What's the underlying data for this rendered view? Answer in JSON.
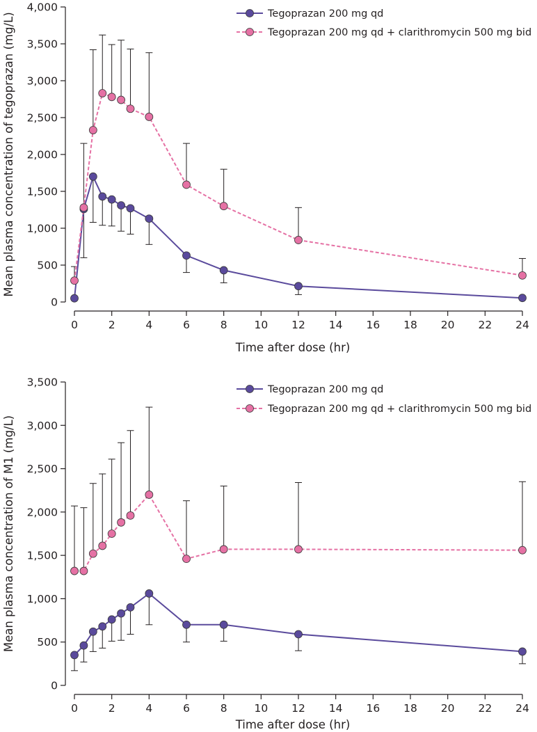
{
  "colors": {
    "series1": "#5a4a9c",
    "series2": "#e571a4",
    "axis": "#231f20"
  },
  "chart_data": [
    {
      "type": "line",
      "xlabel": "Time after dose (hr)",
      "ylabel": "Mean plasma concentration of tegoprazan (mg/L)",
      "xlim": [
        0,
        24
      ],
      "ylim": [
        0,
        4000
      ],
      "xticks": [
        "0",
        "2",
        "4",
        "6",
        "8",
        "10",
        "12",
        "14",
        "16",
        "18",
        "20",
        "22",
        "24"
      ],
      "yticks": [
        "0",
        "500",
        "1,000",
        "1,500",
        "2,000",
        "2,500",
        "3,000",
        "3,500",
        "4,000"
      ],
      "grid": false,
      "legend_position": "top-right",
      "x": [
        0,
        0.5,
        1,
        1.5,
        2,
        2.5,
        3,
        4,
        6,
        8,
        12,
        24
      ],
      "series": [
        {
          "name": "Tegoprazan 200 mg qd",
          "style": "solid",
          "values": [
            50,
            1260,
            1700,
            1430,
            1390,
            1310,
            1270,
            1130,
            630,
            430,
            215,
            55
          ],
          "error_lower": [
            null,
            600,
            1080,
            1040,
            1030,
            960,
            920,
            780,
            400,
            260,
            100,
            null
          ],
          "error_upper": [
            null,
            null,
            null,
            null,
            null,
            null,
            null,
            null,
            null,
            null,
            null,
            null
          ]
        },
        {
          "name": "Tegoprazan 200 mg qd + clarithromycin 500 mg bid",
          "style": "dashed",
          "values": [
            290,
            1280,
            2330,
            2830,
            2780,
            2740,
            2620,
            2510,
            1590,
            1300,
            840,
            360
          ],
          "error_lower": [
            null,
            null,
            null,
            null,
            null,
            null,
            null,
            null,
            null,
            null,
            null,
            null
          ],
          "error_upper": [
            480,
            2150,
            3420,
            3620,
            3490,
            3550,
            3430,
            3380,
            2150,
            1800,
            1280,
            590
          ]
        }
      ]
    },
    {
      "type": "line",
      "xlabel": "Time after dose (hr)",
      "ylabel": "Mean plasma concentration of M1 (mg/L)",
      "xlim": [
        0,
        24
      ],
      "ylim": [
        0,
        3500
      ],
      "xticks": [
        "0",
        "2",
        "4",
        "6",
        "8",
        "10",
        "12",
        "14",
        "16",
        "18",
        "20",
        "22",
        "24"
      ],
      "yticks": [
        "0",
        "500",
        "1,000",
        "1,500",
        "2,000",
        "2,500",
        "3,000",
        "3,500"
      ],
      "grid": false,
      "legend_position": "top-right",
      "x": [
        0,
        0.5,
        1,
        1.5,
        2,
        2.5,
        3,
        4,
        6,
        8,
        12,
        24
      ],
      "series": [
        {
          "name": "Tegoprazan 200 mg qd",
          "style": "solid",
          "values": [
            350,
            460,
            620,
            680,
            760,
            830,
            900,
            1060,
            700,
            700,
            590,
            390
          ],
          "error_lower": [
            170,
            270,
            390,
            430,
            510,
            520,
            590,
            700,
            500,
            510,
            400,
            250
          ],
          "error_upper": [
            null,
            null,
            null,
            null,
            null,
            null,
            null,
            null,
            null,
            null,
            null,
            null
          ]
        },
        {
          "name": "Tegoprazan 200 mg qd + clarithromycin 500 mg bid",
          "style": "dashed",
          "values": [
            1320,
            1320,
            1520,
            1610,
            1750,
            1880,
            1960,
            2200,
            1460,
            1570,
            1570,
            1560
          ],
          "error_lower": [
            null,
            null,
            null,
            null,
            null,
            null,
            null,
            null,
            null,
            null,
            null,
            null
          ],
          "error_upper": [
            2070,
            2050,
            2330,
            2440,
            2610,
            2800,
            2940,
            3210,
            2130,
            2300,
            2340,
            2350
          ]
        }
      ]
    }
  ]
}
